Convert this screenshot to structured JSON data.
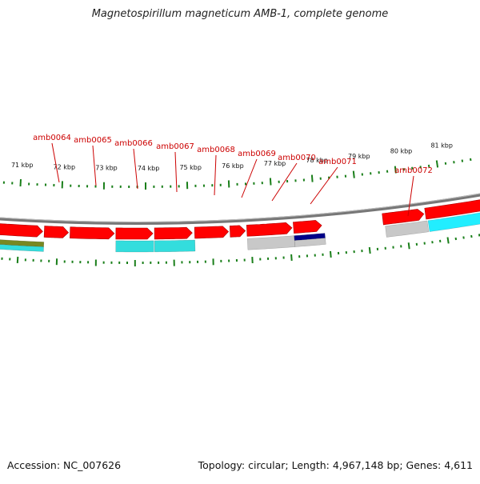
{
  "title": "Magnetospirillum magneticum AMB-1, complete genome",
  "footer": {
    "accession": "Accession: NC_007626",
    "summary": "Topology: circular; Length: 4,967,148 bp; Genes: 4,611"
  },
  "ruler": {
    "labels": [
      "71 kbp",
      "72 kbp",
      "73 kbp",
      "74 kbp",
      "75 kbp",
      "76 kbp",
      "77 kbp",
      "78 kbp",
      "79 kbp",
      "80 kbp",
      "81 kbp"
    ]
  },
  "gene_labels": [
    "amb0064",
    "amb0065",
    "amb0066",
    "amb0067",
    "amb0068",
    "amb0069",
    "amb0070",
    "amb0071",
    "amb0072"
  ],
  "colors": {
    "gene_forward": "#ff0000",
    "label": "#cc0000",
    "tick": "#1a7f1a",
    "cyan": "#33dddd",
    "gray": "#c8c8c8",
    "navy": "#000088",
    "olive": "#778822",
    "backbone": "#777777"
  }
}
